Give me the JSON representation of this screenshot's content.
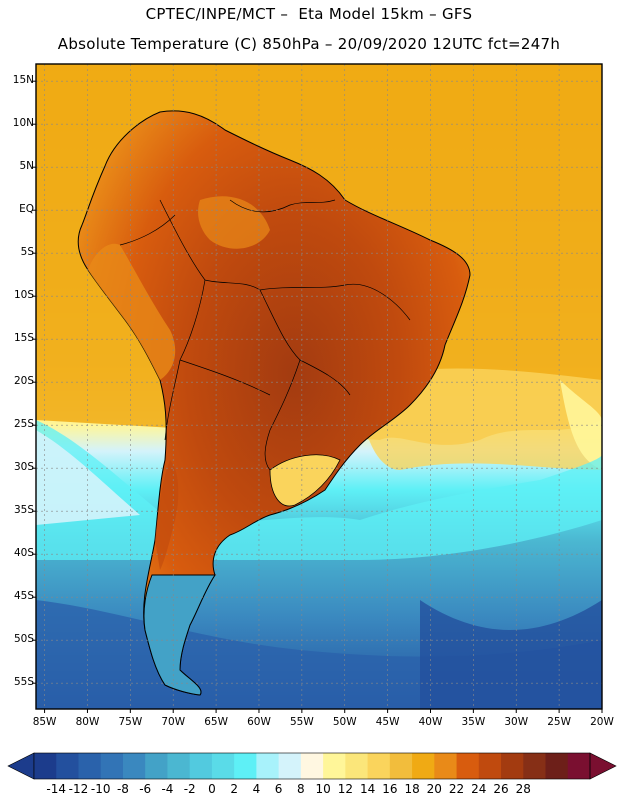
{
  "title": {
    "line1": "CPTEC/INPE/MCT –  Eta Model 15km – GFS",
    "line2": "Absolute Temperature (C) 850hPa – 20/09/2020 12UTC fct=247h"
  },
  "lat_labels": [
    "15N",
    "10N",
    "5N",
    "EQ",
    "5S",
    "10S",
    "15S",
    "20S",
    "25S",
    "30S",
    "35S",
    "40S",
    "45S",
    "50S",
    "55S"
  ],
  "lat_values": [
    15,
    10,
    5,
    0,
    -5,
    -10,
    -15,
    -20,
    -25,
    -30,
    -35,
    -40,
    -45,
    -50,
    -55
  ],
  "lon_labels": [
    "85W",
    "80W",
    "75W",
    "70W",
    "65W",
    "60W",
    "55W",
    "50W",
    "45W",
    "40W",
    "35W",
    "30W",
    "25W",
    "20W"
  ],
  "lon_values": [
    -85,
    -80,
    -75,
    -70,
    -65,
    -60,
    -55,
    -50,
    -45,
    -40,
    -35,
    -30,
    -25,
    -20
  ],
  "map_extent": {
    "lon_min": -86,
    "lon_max": -20,
    "lat_min": -58,
    "lat_max": 17
  },
  "colorbar": {
    "labels": [
      "-14",
      "-12",
      "-10",
      "-8",
      "-6",
      "-4",
      "-2",
      "0",
      "2",
      "4",
      "6",
      "8",
      "10",
      "12",
      "14",
      "16",
      "18",
      "20",
      "22",
      "24",
      "26",
      "28"
    ],
    "colors": [
      "#1c3c8c",
      "#23509e",
      "#2a62ab",
      "#3274b6",
      "#3a88bf",
      "#43a2c7",
      "#4bb7d1",
      "#52cadf",
      "#5adbe8",
      "#5ef0f6",
      "#a8f2fb",
      "#d4f3fb",
      "#fff7e1",
      "#fff699",
      "#fbe67a",
      "#fad45c",
      "#f2bd3c",
      "#f0aa14",
      "#e98a18",
      "#d85c0e",
      "#c04a0e",
      "#a33b10",
      "#862f16",
      "#6d1f19",
      "#7a0f30"
    ],
    "low_color": "#1c3c8c",
    "high_color": "#7a0f30"
  },
  "region": "South America"
}
